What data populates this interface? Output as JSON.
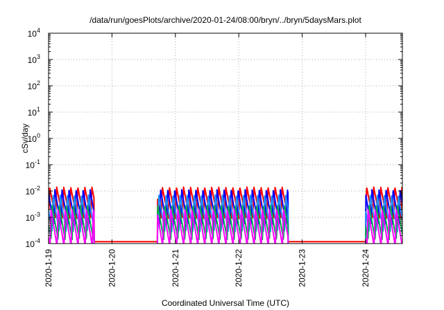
{
  "chart_data": {
    "type": "line",
    "title": "/data/run/goesPlots/archive/2020-01-24/08:00/bryn/../bryn/5daysMars.plot",
    "xlabel": "Coordinated Universal Time (UTC)",
    "ylabel": "cSv/day",
    "yscale": "log",
    "ylim_exp": [
      -4,
      4
    ],
    "y_ticks": [
      {
        "base": "10",
        "exp": "4",
        "v": 4
      },
      {
        "base": "10",
        "exp": "3",
        "v": 3
      },
      {
        "base": "10",
        "exp": "2",
        "v": 2
      },
      {
        "base": "10",
        "exp": "1",
        "v": 1
      },
      {
        "base": "10",
        "exp": "0",
        "v": 0
      },
      {
        "base": "10",
        "exp": "-1",
        "v": -1
      },
      {
        "base": "10",
        "exp": "-2",
        "v": -2
      },
      {
        "base": "10",
        "exp": "-3",
        "v": -3
      },
      {
        "base": "10",
        "exp": "-4",
        "v": -4
      }
    ],
    "xlim_days": [
      0,
      5.58
    ],
    "x_ticks": [
      {
        "label": "2020-1-19",
        "d": 0
      },
      {
        "label": "2020-1-20",
        "d": 1
      },
      {
        "label": "2020-1-21",
        "d": 2
      },
      {
        "label": "2020-1-22",
        "d": 3
      },
      {
        "label": "2020-1-23",
        "d": 4
      },
      {
        "label": "2020-1-24",
        "d": 5
      }
    ],
    "grid": true,
    "active_segments": [
      [
        0,
        0.72
      ],
      [
        1.72,
        3.78
      ],
      [
        5.0,
        5.58
      ]
    ],
    "cycles_per_day": 9,
    "series": [
      {
        "color": "#ff0000",
        "peak_exp": -1.85,
        "trough_exp": -3.05,
        "phase": 0.0
      },
      {
        "color": "#0000ff",
        "peak_exp": -1.95,
        "trough_exp": -3.3,
        "phase": 0.25
      },
      {
        "color": "#1e90ff",
        "peak_exp": -2.15,
        "trough_exp": -3.55,
        "phase": 0.5
      },
      {
        "color": "#00b050",
        "peak_exp": -2.55,
        "trough_exp": -3.85,
        "phase": 0.65
      },
      {
        "color": "#ff00ff",
        "peak_exp": -2.7,
        "trough_exp": -4.1,
        "phase": 0.8
      }
    ],
    "quiet_level_exp": -3.93
  }
}
